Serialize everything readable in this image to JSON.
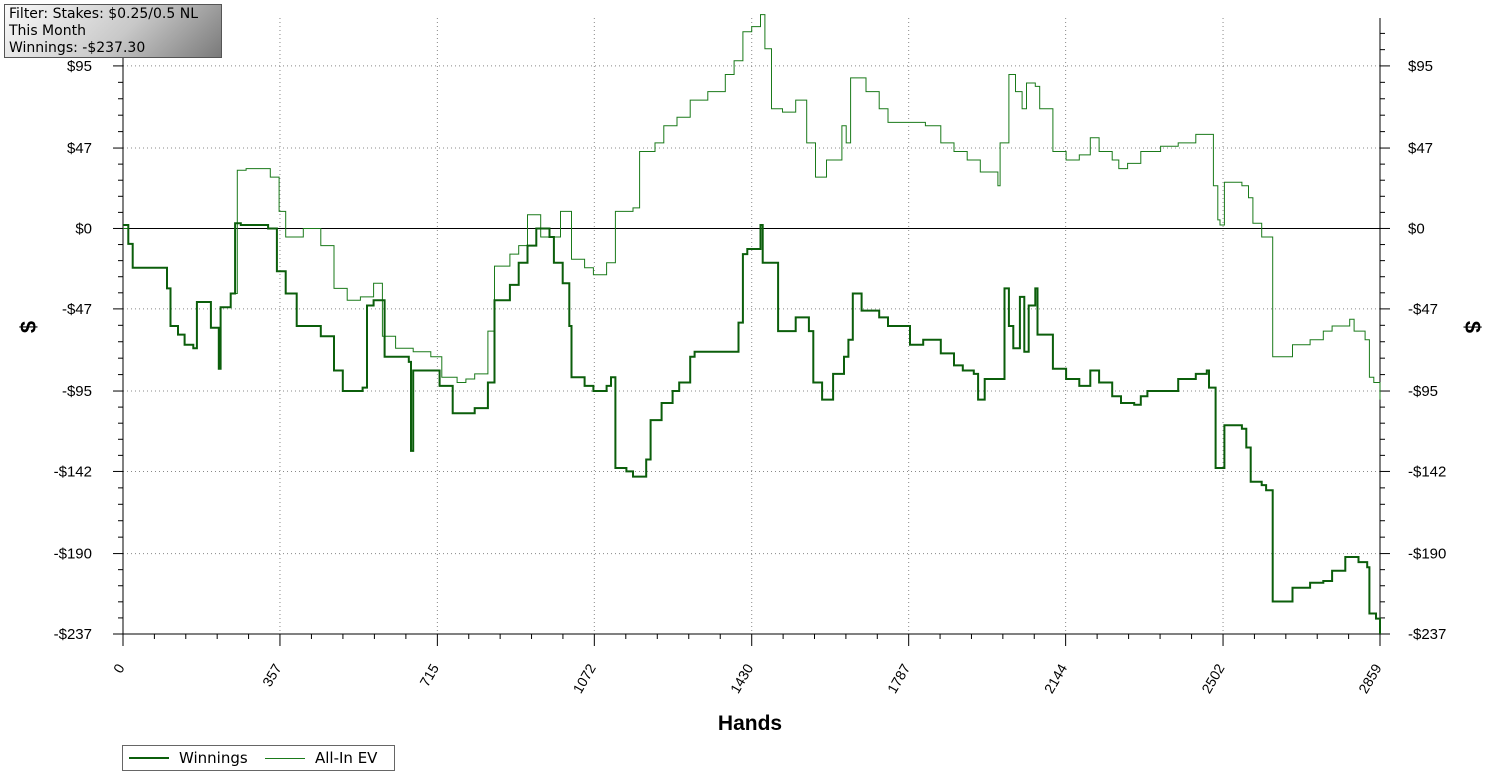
{
  "filter": {
    "line1": "Filter: Stakes: $0.25/0.5 NL",
    "line2": "This Month",
    "line3": "Winnings: -$237.30"
  },
  "legend": {
    "winnings_label": "Winnings",
    "ev_label": "All-In EV"
  },
  "colors": {
    "winnings": "#0b5e0b",
    "ev": "#1a7a1a",
    "grid": "#888888",
    "zero_line": "#000000"
  },
  "chart_data": {
    "type": "line",
    "xlabel": "Hands",
    "ylabel": "$",
    "xlim": [
      0,
      2859
    ],
    "ylim": [
      -237,
      123
    ],
    "x_ticks": [
      0,
      357,
      715,
      1072,
      1430,
      1787,
      2144,
      2502,
      2859
    ],
    "x_tick_labels": [
      "0",
      "357",
      "715",
      "1072",
      "1430",
      "1787",
      "2144",
      "2502",
      "2859"
    ],
    "y_ticks": [
      95,
      47,
      0,
      -47,
      -95,
      -142,
      -190,
      -237
    ],
    "y_tick_labels": [
      "$95",
      "$47",
      "$0",
      "-$47",
      "-$95",
      "-$142",
      "-$190",
      "-$237"
    ],
    "grid": true,
    "legend_position": "bottom-left",
    "series": [
      {
        "name": "Winnings",
        "points": [
          [
            0,
            2
          ],
          [
            12,
            -9
          ],
          [
            22,
            -23
          ],
          [
            100,
            -35
          ],
          [
            108,
            -57
          ],
          [
            125,
            -62
          ],
          [
            140,
            -68
          ],
          [
            160,
            -70
          ],
          [
            168,
            -43
          ],
          [
            200,
            -58
          ],
          [
            218,
            -82
          ],
          [
            222,
            -46
          ],
          [
            245,
            -38
          ],
          [
            255,
            3
          ],
          [
            268,
            2
          ],
          [
            330,
            0
          ],
          [
            350,
            -25
          ],
          [
            370,
            -38
          ],
          [
            395,
            -57
          ],
          [
            450,
            -63
          ],
          [
            480,
            -83
          ],
          [
            500,
            -95
          ],
          [
            545,
            -93
          ],
          [
            555,
            -45
          ],
          [
            570,
            -42
          ],
          [
            595,
            -75
          ],
          [
            650,
            -78
          ],
          [
            655,
            -130
          ],
          [
            660,
            -83
          ],
          [
            720,
            -92
          ],
          [
            750,
            -108
          ],
          [
            800,
            -105
          ],
          [
            830,
            -90
          ],
          [
            845,
            -42
          ],
          [
            880,
            -33
          ],
          [
            900,
            -20
          ],
          [
            920,
            -10
          ],
          [
            940,
            0
          ],
          [
            970,
            -5
          ],
          [
            980,
            -20
          ],
          [
            1000,
            -32
          ],
          [
            1015,
            -57
          ],
          [
            1020,
            -87
          ],
          [
            1050,
            -92
          ],
          [
            1070,
            -95
          ],
          [
            1100,
            -92
          ],
          [
            1110,
            -87
          ],
          [
            1120,
            -140
          ],
          [
            1145,
            -142
          ],
          [
            1160,
            -145
          ],
          [
            1190,
            -135
          ],
          [
            1200,
            -112
          ],
          [
            1225,
            -102
          ],
          [
            1250,
            -95
          ],
          [
            1265,
            -90
          ],
          [
            1290,
            -75
          ],
          [
            1300,
            -72
          ],
          [
            1400,
            -55
          ],
          [
            1410,
            -15
          ],
          [
            1420,
            -12
          ],
          [
            1450,
            -3
          ],
          [
            1450,
            2
          ],
          [
            1455,
            -20
          ],
          [
            1490,
            -60
          ],
          [
            1530,
            -52
          ],
          [
            1560,
            -60
          ],
          [
            1570,
            -90
          ],
          [
            1590,
            -100
          ],
          [
            1615,
            -85
          ],
          [
            1640,
            -75
          ],
          [
            1650,
            -65
          ],
          [
            1660,
            -38
          ],
          [
            1680,
            -48
          ],
          [
            1720,
            -52
          ],
          [
            1740,
            -57
          ],
          [
            1790,
            -68
          ],
          [
            1820,
            -65
          ],
          [
            1860,
            -73
          ],
          [
            1890,
            -80
          ],
          [
            1910,
            -83
          ],
          [
            1935,
            -85
          ],
          [
            1945,
            -100
          ],
          [
            1960,
            -88
          ],
          [
            2005,
            -35
          ],
          [
            2015,
            -57
          ],
          [
            2025,
            -70
          ],
          [
            2040,
            -40
          ],
          [
            2050,
            -72
          ],
          [
            2060,
            -45
          ],
          [
            2075,
            -35
          ],
          [
            2080,
            -62
          ],
          [
            2115,
            -82
          ],
          [
            2145,
            -88
          ],
          [
            2175,
            -92
          ],
          [
            2200,
            -83
          ],
          [
            2220,
            -90
          ],
          [
            2250,
            -98
          ],
          [
            2270,
            -102
          ],
          [
            2300,
            -103
          ],
          [
            2315,
            -98
          ],
          [
            2330,
            -95
          ],
          [
            2400,
            -88
          ],
          [
            2440,
            -85
          ],
          [
            2465,
            -83
          ],
          [
            2470,
            -93
          ],
          [
            2485,
            -140
          ],
          [
            2505,
            -115
          ],
          [
            2545,
            -117
          ],
          [
            2555,
            -128
          ],
          [
            2565,
            -148
          ],
          [
            2590,
            -150
          ],
          [
            2600,
            -153
          ],
          [
            2615,
            -218
          ],
          [
            2660,
            -210
          ],
          [
            2700,
            -207
          ],
          [
            2730,
            -206
          ],
          [
            2750,
            -200
          ],
          [
            2780,
            -192
          ],
          [
            2810,
            -195
          ],
          [
            2830,
            -198
          ],
          [
            2835,
            -225
          ],
          [
            2850,
            -228
          ],
          [
            2859,
            -237
          ]
        ]
      },
      {
        "name": "All-In EV",
        "points": [
          [
            0,
            0
          ],
          [
            12,
            -9
          ],
          [
            22,
            -23
          ],
          [
            100,
            -35
          ],
          [
            108,
            -57
          ],
          [
            125,
            -62
          ],
          [
            140,
            -68
          ],
          [
            160,
            -70
          ],
          [
            168,
            -43
          ],
          [
            200,
            -58
          ],
          [
            218,
            -82
          ],
          [
            222,
            -46
          ],
          [
            245,
            -38
          ],
          [
            260,
            34
          ],
          [
            280,
            35
          ],
          [
            335,
            30
          ],
          [
            355,
            10
          ],
          [
            370,
            -5
          ],
          [
            410,
            0
          ],
          [
            450,
            -10
          ],
          [
            480,
            -35
          ],
          [
            510,
            -42
          ],
          [
            540,
            -40
          ],
          [
            570,
            -32
          ],
          [
            590,
            -63
          ],
          [
            620,
            -70
          ],
          [
            660,
            -72
          ],
          [
            700,
            -75
          ],
          [
            725,
            -87
          ],
          [
            760,
            -90
          ],
          [
            780,
            -88
          ],
          [
            800,
            -85
          ],
          [
            830,
            -60
          ],
          [
            845,
            -22
          ],
          [
            880,
            -15
          ],
          [
            900,
            -10
          ],
          [
            920,
            8
          ],
          [
            950,
            -5
          ],
          [
            975,
            -5
          ],
          [
            995,
            10
          ],
          [
            1020,
            -18
          ],
          [
            1050,
            -23
          ],
          [
            1070,
            -27
          ],
          [
            1100,
            -20
          ],
          [
            1120,
            10
          ],
          [
            1160,
            12
          ],
          [
            1175,
            45
          ],
          [
            1210,
            50
          ],
          [
            1230,
            60
          ],
          [
            1260,
            65
          ],
          [
            1290,
            75
          ],
          [
            1330,
            80
          ],
          [
            1370,
            90
          ],
          [
            1390,
            98
          ],
          [
            1410,
            115
          ],
          [
            1430,
            118
          ],
          [
            1450,
            125
          ],
          [
            1460,
            105
          ],
          [
            1475,
            70
          ],
          [
            1500,
            68
          ],
          [
            1530,
            75
          ],
          [
            1555,
            50
          ],
          [
            1575,
            30
          ],
          [
            1600,
            40
          ],
          [
            1635,
            60
          ],
          [
            1645,
            50
          ],
          [
            1655,
            88
          ],
          [
            1690,
            80
          ],
          [
            1720,
            70
          ],
          [
            1740,
            62
          ],
          [
            1790,
            62
          ],
          [
            1825,
            60
          ],
          [
            1860,
            50
          ],
          [
            1890,
            45
          ],
          [
            1920,
            40
          ],
          [
            1950,
            33
          ],
          [
            1990,
            25
          ],
          [
            1995,
            50
          ],
          [
            2015,
            90
          ],
          [
            2030,
            80
          ],
          [
            2045,
            70
          ],
          [
            2055,
            85
          ],
          [
            2075,
            83
          ],
          [
            2085,
            70
          ],
          [
            2115,
            45
          ],
          [
            2145,
            40
          ],
          [
            2175,
            43
          ],
          [
            2200,
            53
          ],
          [
            2220,
            45
          ],
          [
            2250,
            40
          ],
          [
            2265,
            35
          ],
          [
            2285,
            38
          ],
          [
            2300,
            38
          ],
          [
            2315,
            45
          ],
          [
            2360,
            48
          ],
          [
            2400,
            50
          ],
          [
            2440,
            55
          ],
          [
            2470,
            55
          ],
          [
            2480,
            25
          ],
          [
            2490,
            5
          ],
          [
            2495,
            2
          ],
          [
            2505,
            27
          ],
          [
            2545,
            25
          ],
          [
            2560,
            18
          ],
          [
            2570,
            3
          ],
          [
            2590,
            -5
          ],
          [
            2600,
            -5
          ],
          [
            2615,
            -75
          ],
          [
            2660,
            -68
          ],
          [
            2700,
            -65
          ],
          [
            2730,
            -60
          ],
          [
            2750,
            -57
          ],
          [
            2790,
            -53
          ],
          [
            2800,
            -60
          ],
          [
            2825,
            -65
          ],
          [
            2835,
            -87
          ],
          [
            2845,
            -90
          ],
          [
            2859,
            -100
          ]
        ]
      }
    ]
  }
}
